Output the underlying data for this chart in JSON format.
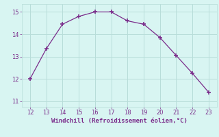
{
  "x": [
    12,
    13,
    14,
    15,
    16,
    17,
    18,
    19,
    20,
    21,
    22,
    23
  ],
  "y": [
    12.0,
    13.35,
    14.45,
    14.8,
    15.0,
    15.0,
    14.6,
    14.45,
    13.85,
    13.05,
    12.25,
    11.4
  ],
  "line_color": "#7b2d8b",
  "marker": "+",
  "marker_size": 4,
  "marker_linewidth": 1.2,
  "bg_color": "#d8f5f2",
  "grid_color": "#b8ddd9",
  "xlabel": "Windchill (Refroidissement éolien,°C)",
  "xlabel_color": "#7b2d8b",
  "xlabel_fontsize": 6.5,
  "tick_color": "#7b2d8b",
  "tick_fontsize": 6,
  "xlim": [
    11.5,
    23.5
  ],
  "ylim": [
    10.75,
    15.35
  ],
  "xticks": [
    12,
    13,
    14,
    15,
    16,
    17,
    18,
    19,
    20,
    21,
    22,
    23
  ],
  "yticks": [
    11,
    12,
    13,
    14,
    15
  ],
  "line_width": 0.9
}
